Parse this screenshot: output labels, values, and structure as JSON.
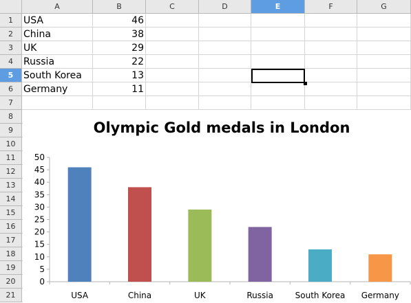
{
  "columns": [
    "A",
    "B",
    "C",
    "D",
    "E",
    "F",
    "G"
  ],
  "rows": [
    "1",
    "2",
    "3",
    "4",
    "5",
    "6",
    "7",
    "8",
    "9",
    "10",
    "11",
    "12",
    "13",
    "14",
    "15",
    "16",
    "17",
    "18",
    "19",
    "20",
    "21"
  ],
  "selected_cell": {
    "column": "E",
    "row": "5"
  },
  "table": [
    {
      "country": "USA",
      "gold": "46"
    },
    {
      "country": "China",
      "gold": "38"
    },
    {
      "country": "UK",
      "gold": "29"
    },
    {
      "country": "Russia",
      "gold": "22"
    },
    {
      "country": "South Korea",
      "gold": "13"
    },
    {
      "country": "Germany",
      "gold": "11"
    }
  ],
  "chart_data": {
    "type": "bar",
    "title": "Olympic Gold medals in London",
    "categories": [
      "USA",
      "China",
      "UK",
      "Russia",
      "South Korea",
      "Germany"
    ],
    "values": [
      46,
      38,
      29,
      22,
      13,
      11
    ],
    "colors": [
      "#4f81bd",
      "#c0504d",
      "#9bbb59",
      "#8064a2",
      "#4bacc6",
      "#f79646"
    ],
    "ylim": [
      0,
      50
    ],
    "yticks": [
      0,
      5,
      10,
      15,
      20,
      25,
      30,
      35,
      40,
      45,
      50
    ],
    "grid": false,
    "legend": "none"
  }
}
